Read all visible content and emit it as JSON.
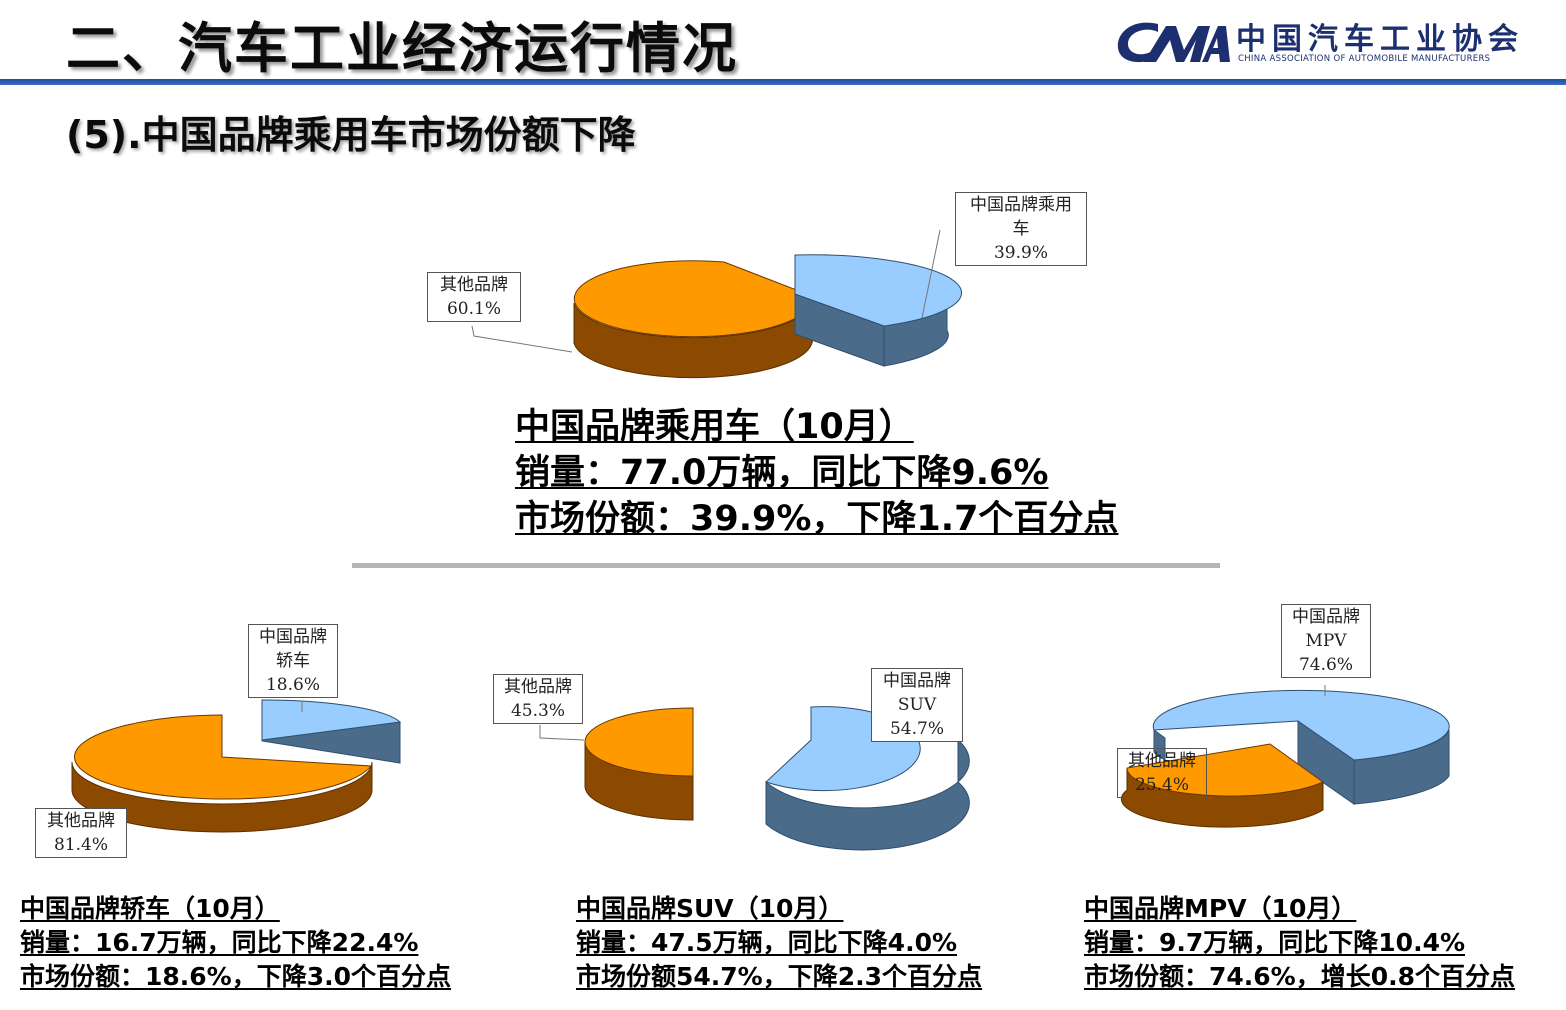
{
  "header": {
    "title": "二、汽车工业经济运行情况",
    "subtitle": "(5).中国品牌乘用车市场份额下降",
    "logo_cn": "中国汽车工业协会",
    "logo_en": "CHINA ASSOCIATION OF AUTOMOBILE MANUFACTURERS",
    "accent": "#1f4e9a"
  },
  "colors": {
    "china_top": "#99ccff",
    "china_side": "#4a6b8a",
    "other_top": "#ff9900",
    "other_side": "#8b4a00"
  },
  "chart_data": [
    {
      "type": "pie",
      "id": "passenger",
      "slices": [
        {
          "name": "中国品牌乘用车",
          "label_lines": [
            "中国品牌乘用",
            "车",
            "39.9%"
          ],
          "value": 39.9
        },
        {
          "name": "其他品牌",
          "label_lines": [
            "其他品牌",
            "60.1%"
          ],
          "value": 60.1
        }
      ],
      "caption": [
        "中国品牌乘用车（10月）",
        "销量：77.0万辆，同比下降9.6%",
        "市场份额：39.9%，下降1.7个百分点"
      ]
    },
    {
      "type": "pie",
      "id": "sedan",
      "slices": [
        {
          "name": "中国品牌轿车",
          "label_lines": [
            "中国品牌",
            "轿车",
            "18.6%"
          ],
          "value": 18.6
        },
        {
          "name": "其他品牌",
          "label_lines": [
            "其他品牌",
            "81.4%"
          ],
          "value": 81.4
        }
      ],
      "caption": [
        "中国品牌轿车（10月）",
        "销量：16.7万辆，同比下降22.4%",
        "市场份额：18.6%，下降3.0个百分点"
      ]
    },
    {
      "type": "pie",
      "id": "suv",
      "slices": [
        {
          "name": "中国品牌SUV",
          "label_lines": [
            "中国品牌",
            "SUV",
            "54.7%"
          ],
          "value": 54.7
        },
        {
          "name": "其他品牌",
          "label_lines": [
            "其他品牌",
            "45.3%"
          ],
          "value": 45.3
        }
      ],
      "caption": [
        "中国品牌SUV（10月）",
        "销量：47.5万辆，同比下降4.0%",
        "市场份额54.7%，下降2.3个百分点"
      ]
    },
    {
      "type": "pie",
      "id": "mpv",
      "slices": [
        {
          "name": "中国品牌MPV",
          "label_lines": [
            "中国品牌",
            "MPV",
            "74.6%"
          ],
          "value": 74.6
        },
        {
          "name": "其他品牌",
          "label_lines": [
            "其他品牌",
            "25.4%"
          ],
          "value": 25.4
        }
      ],
      "caption": [
        "中国品牌MPV（10月）",
        "销量：9.7万辆，同比下降10.4%",
        "市场份额：74.6%，增长0.8个百分点"
      ]
    }
  ]
}
